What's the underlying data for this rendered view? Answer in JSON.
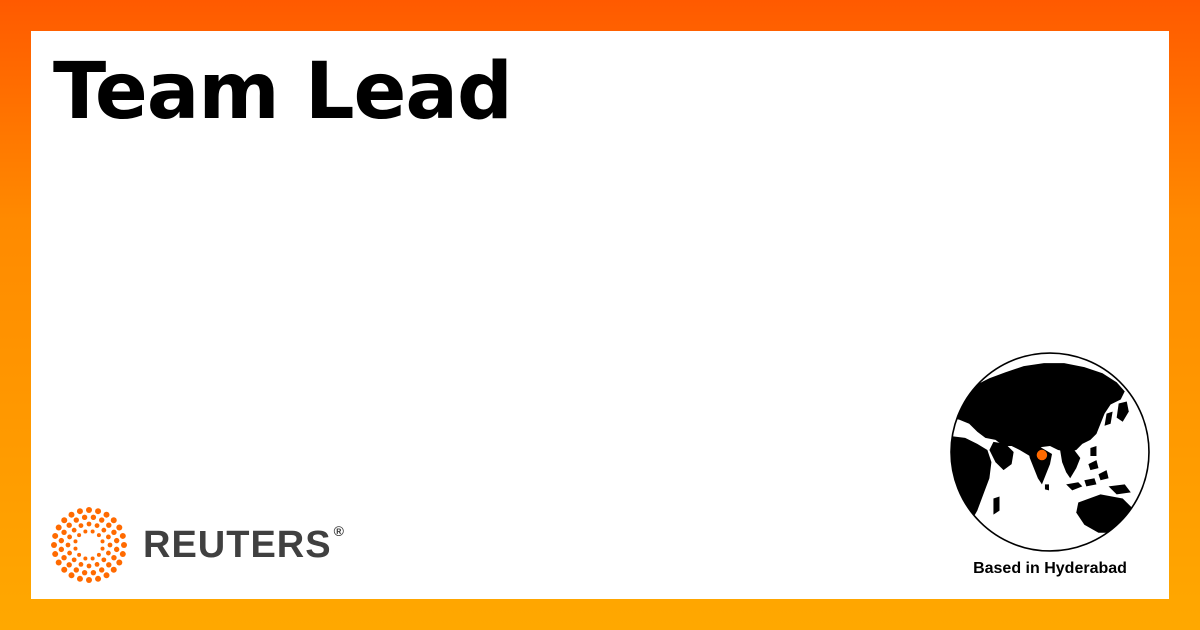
{
  "job": {
    "title": "Team Lead"
  },
  "brand": {
    "logo_icon": "reuters-dot-ring-icon",
    "wordmark": "REUTERS",
    "registered_mark": "®",
    "logo_color": "#ff6a00",
    "wordmark_color": "#404040"
  },
  "location": {
    "label": "Based in Hyderabad",
    "globe_icon": "globe-icon",
    "marker_icon": "location-pin-icon",
    "marker_color": "#ff6a00"
  },
  "colors": {
    "frame_top": "#ff5a00",
    "frame_bottom": "#ffa800",
    "card": "#ffffff"
  }
}
